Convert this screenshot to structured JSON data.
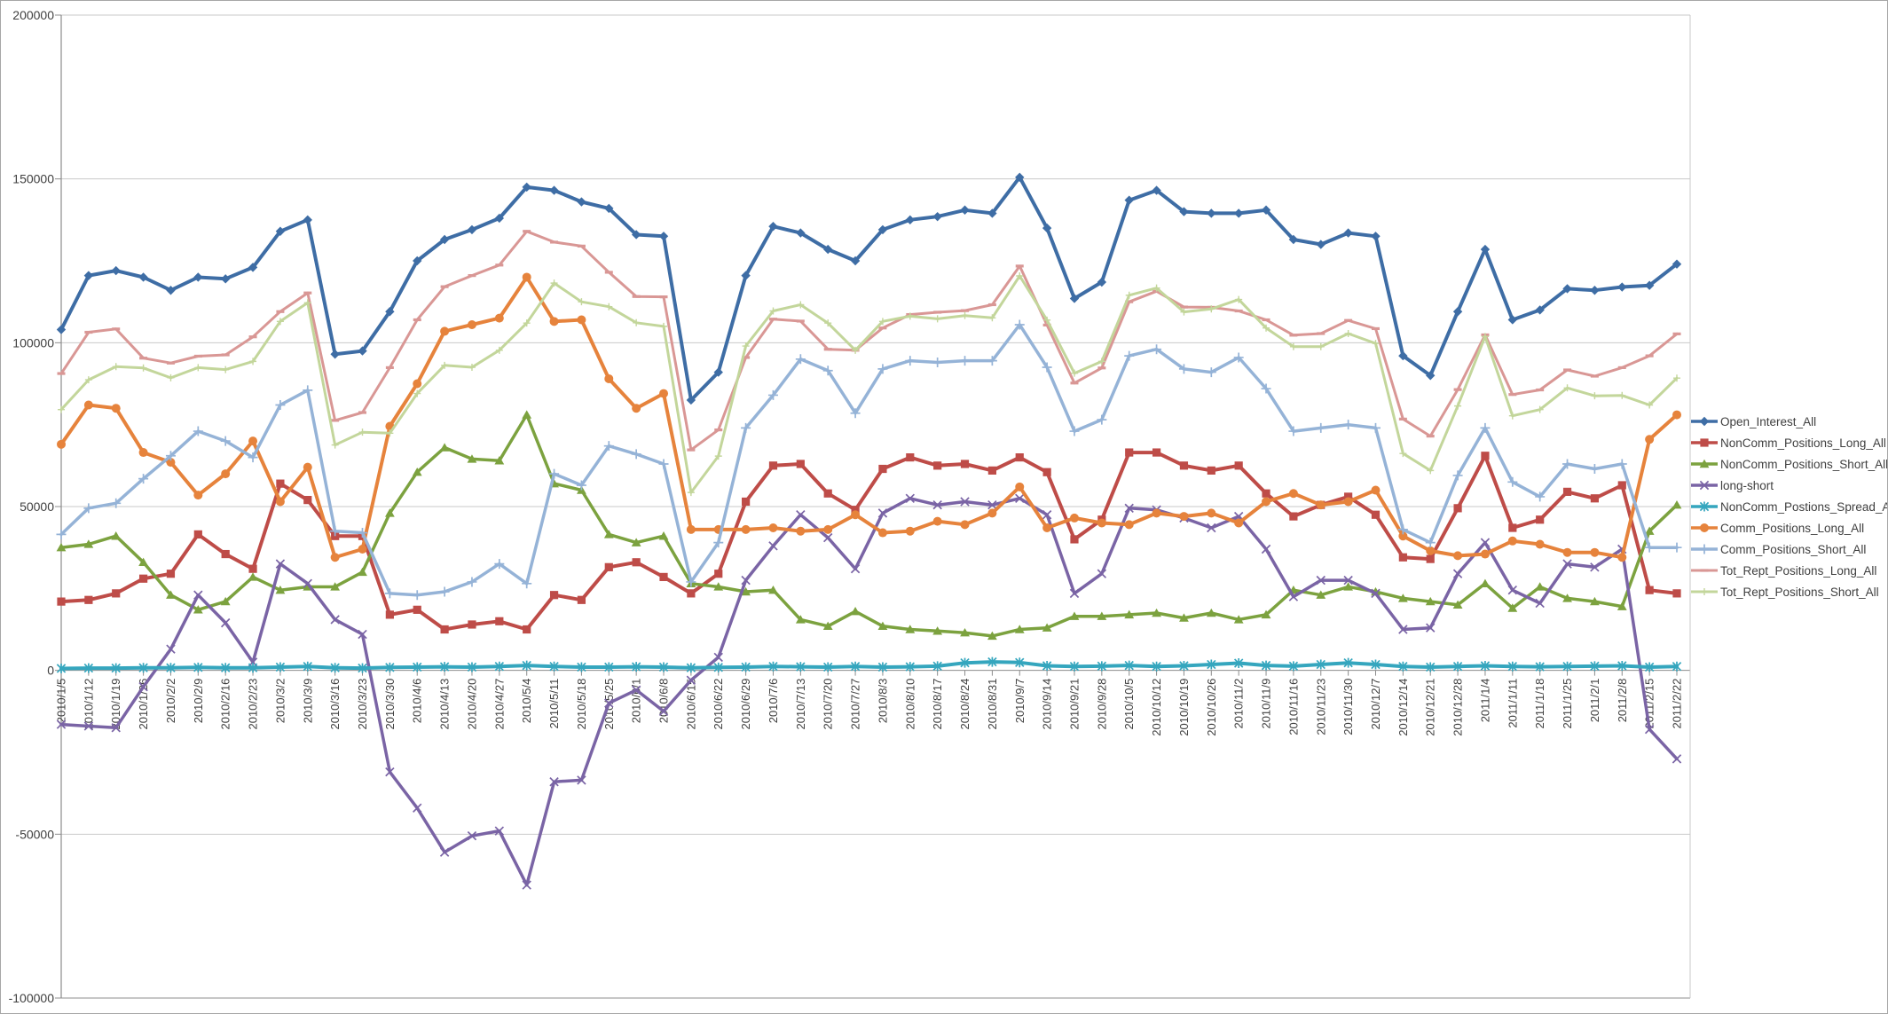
{
  "chart_data": {
    "type": "line",
    "title": "",
    "xlabel": "",
    "ylabel": "",
    "grid": true,
    "legend_position": "right",
    "y_axis": {
      "min": -100000,
      "max": 200000,
      "step": 50000,
      "tick_labels": [
        "200000",
        "150000",
        "100000",
        "50000",
        "0",
        "-50000",
        "-100000"
      ]
    },
    "x_labels": [
      "2010/1/5",
      "2010/1/12",
      "2010/1/19",
      "2010/1/26",
      "2010/2/2",
      "2010/2/9",
      "2010/2/16",
      "2010/2/23",
      "2010/3/2",
      "2010/3/9",
      "2010/3/16",
      "2010/3/23",
      "2010/3/30",
      "2010/4/6",
      "2010/4/13",
      "2010/4/20",
      "2010/4/27",
      "2010/5/4",
      "2010/5/11",
      "2010/5/18",
      "2010/5/25",
      "2010/6/1",
      "2010/6/8",
      "2010/6/15",
      "2010/6/22",
      "2010/6/29",
      "2010/7/6",
      "2010/7/13",
      "2010/7/20",
      "2010/7/27",
      "2010/8/3",
      "2010/8/10",
      "2010/8/17",
      "2010/8/24",
      "2010/8/31",
      "2010/9/7",
      "2010/9/14",
      "2010/9/21",
      "2010/9/28",
      "2010/10/5",
      "2010/10/12",
      "2010/10/19",
      "2010/10/26",
      "2010/11/2",
      "2010/11/9",
      "2010/11/16",
      "2010/11/23",
      "2010/11/30",
      "2010/12/7",
      "2010/12/14",
      "2010/12/21",
      "2010/12/28",
      "2011/1/4",
      "2011/1/11",
      "2011/1/18",
      "2011/1/25",
      "2011/2/1",
      "2011/2/8",
      "2011/2/15",
      "2011/2/22"
    ],
    "series": [
      {
        "name": "Open_Interest_All",
        "color": "#3E6DA5",
        "marker": "diamond",
        "values": [
          104000,
          120500,
          122000,
          120000,
          116000,
          120000,
          119500,
          123000,
          134000,
          137500,
          96500,
          97500,
          109500,
          125000,
          131500,
          134500,
          138000,
          147500,
          146500,
          143000,
          141000,
          133000,
          132500,
          82500,
          91000,
          120500,
          135500,
          133500,
          128500,
          125000,
          134500,
          137500,
          138500,
          140500,
          139500,
          150500,
          135000,
          113500,
          118500,
          143500,
          146500,
          140000,
          139500,
          139500,
          140500,
          131500,
          130000,
          133500,
          132500,
          96000,
          90000,
          109500,
          128500,
          107000,
          110000,
          116500,
          116000,
          117000,
          117500,
          124000
        ]
      },
      {
        "name": "NonComm_Positions_Long_All",
        "color": "#BE4C48",
        "marker": "square",
        "values": [
          21000,
          21500,
          23500,
          28000,
          29500,
          41500,
          35500,
          31000,
          57000,
          52000,
          41000,
          41000,
          17000,
          18500,
          12500,
          14000,
          15000,
          12500,
          23000,
          21500,
          31500,
          33000,
          28500,
          23500,
          29500,
          51500,
          62500,
          63000,
          54000,
          49000,
          61500,
          65000,
          62500,
          63000,
          61000,
          65000,
          60500,
          40000,
          46000,
          66500,
          66500,
          62500,
          61000,
          62500,
          54000,
          47000,
          50500,
          53000,
          47500,
          34500,
          34000,
          49500,
          65500,
          43500,
          46000,
          54500,
          52500,
          56500,
          24500,
          23500
        ]
      },
      {
        "name": "NonComm_Positions_Short_All",
        "color": "#7CA23F",
        "marker": "triangle",
        "values": [
          37500,
          38500,
          41000,
          33000,
          23000,
          18500,
          21000,
          28500,
          24500,
          25500,
          25500,
          30000,
          48000,
          60500,
          68000,
          64500,
          64000,
          78000,
          57000,
          55000,
          41500,
          39000,
          41000,
          26500,
          25500,
          24000,
          24500,
          15500,
          13500,
          18000,
          13500,
          12500,
          12000,
          11500,
          10500,
          12500,
          13000,
          16500,
          16500,
          17000,
          17500,
          16000,
          17500,
          15500,
          17000,
          24500,
          23000,
          25500,
          24000,
          22000,
          21000,
          20000,
          26500,
          19000,
          25500,
          22000,
          21000,
          19500,
          42500,
          50500
        ]
      },
      {
        "name": "long-short",
        "color": "#7A64A5",
        "marker": "x",
        "values": [
          -16500,
          -17000,
          -17500,
          -5000,
          6500,
          23000,
          14500,
          2500,
          32500,
          26500,
          15500,
          11000,
          -31000,
          -42000,
          -55500,
          -50500,
          -49000,
          -65500,
          -34000,
          -33500,
          -10000,
          -6000,
          -12500,
          -3000,
          4000,
          27500,
          38000,
          47500,
          40500,
          31000,
          48000,
          52500,
          50500,
          51500,
          50500,
          52500,
          47500,
          23500,
          29500,
          49500,
          49000,
          46500,
          43500,
          47000,
          37000,
          22500,
          27500,
          27500,
          23500,
          12500,
          13000,
          29500,
          39000,
          24500,
          20500,
          32500,
          31500,
          37000,
          -18000,
          -27000
        ]
      },
      {
        "name": "NonComm_Postions_Spread_All",
        "color": "#35A6BE",
        "marker": "star",
        "values": [
          600,
          700,
          700,
          800,
          800,
          900,
          800,
          800,
          1000,
          1200,
          800,
          700,
          900,
          1000,
          1100,
          1000,
          1200,
          1500,
          1200,
          1000,
          1000,
          1100,
          1000,
          800,
          900,
          1000,
          1200,
          1100,
          1000,
          1200,
          1000,
          1100,
          1300,
          2300,
          2600,
          2400,
          1400,
          1200,
          1300,
          1500,
          1200,
          1400,
          1800,
          2200,
          1500,
          1300,
          1800,
          2300,
          1800,
          1200,
          1000,
          1200,
          1400,
          1200,
          1100,
          1200,
          1300,
          1400,
          1000,
          1200
        ]
      },
      {
        "name": "Comm_Positions_Long_All",
        "color": "#E6833C",
        "marker": "circle",
        "values": [
          69000,
          81000,
          80000,
          66500,
          63500,
          53500,
          60000,
          70000,
          51500,
          62000,
          34500,
          37000,
          74500,
          87500,
          103500,
          105500,
          107500,
          120000,
          106500,
          107000,
          89000,
          80000,
          84500,
          43000,
          43000,
          43000,
          43500,
          42500,
          43000,
          47500,
          42000,
          42500,
          45500,
          44500,
          48000,
          56000,
          43500,
          46500,
          45000,
          44500,
          48000,
          47000,
          48000,
          45000,
          51500,
          54000,
          50500,
          51500,
          55000,
          41000,
          36500,
          35000,
          35500,
          39500,
          38500,
          36000,
          36000,
          34500,
          70500,
          78000
        ]
      },
      {
        "name": "Comm_Positions_Short_All",
        "color": "#95B3D7",
        "marker": "plus",
        "values": [
          41500,
          49500,
          51000,
          58500,
          65500,
          73000,
          70000,
          65000,
          81000,
          85500,
          42500,
          42000,
          23500,
          23000,
          24000,
          27000,
          32500,
          26500,
          60000,
          56500,
          68500,
          66000,
          63000,
          27000,
          39000,
          74000,
          84000,
          95000,
          91500,
          78500,
          92000,
          94500,
          94000,
          94500,
          94500,
          105500,
          92500,
          73000,
          76500,
          96000,
          98000,
          92000,
          91000,
          95500,
          86000,
          73000,
          74000,
          75000,
          74000,
          43000,
          39000,
          59500,
          74000,
          57500,
          53000,
          63000,
          61500,
          63000,
          37500,
          37500
        ]
      },
      {
        "name": "Tot_Rept_Positions_Long_All",
        "color": "#D99795",
        "marker": "dash",
        "values": [
          90600,
          103200,
          104200,
          95300,
          93800,
          95900,
          96300,
          101800,
          109500,
          115200,
          76300,
          78700,
          92400,
          107000,
          117100,
          120500,
          123700,
          134000,
          130700,
          129500,
          121500,
          114100,
          114000,
          67300,
          73400,
          95500,
          107200,
          106600,
          98000,
          97700,
          104500,
          108600,
          109300,
          109800,
          111600,
          123400,
          105400,
          87700,
          92300,
          112500,
          115700,
          110900,
          110800,
          109700,
          107000,
          102300,
          102800,
          106800,
          104300,
          76700,
          71500,
          85700,
          102400,
          84200,
          85600,
          91700,
          89800,
          92400,
          96000,
          102700
        ]
      },
      {
        "name": "Tot_Rept_Positions_Short_All",
        "color": "#C3D69B",
        "marker": "smallplus",
        "values": [
          79600,
          88700,
          92700,
          92300,
          89300,
          92400,
          91800,
          94300,
          106500,
          112200,
          68800,
          72700,
          72400,
          84500,
          93100,
          92500,
          97700,
          106000,
          118200,
          112500,
          111000,
          106100,
          105000,
          54300,
          65400,
          99000,
          109700,
          111600,
          106000,
          97700,
          106500,
          108100,
          107300,
          108300,
          107600,
          120400,
          106900,
          90700,
          94300,
          114500,
          116700,
          109400,
          110300,
          113200,
          104500,
          98800,
          98800,
          102800,
          99800,
          66200,
          61000,
          80700,
          101900,
          77700,
          79600,
          86200,
          83800,
          83900,
          81000,
          89200
        ]
      }
    ],
    "colors": {
      "gridline": "#C9C9C9",
      "axis": "#8C8C8C",
      "label_text": "#3F3F3F"
    }
  }
}
